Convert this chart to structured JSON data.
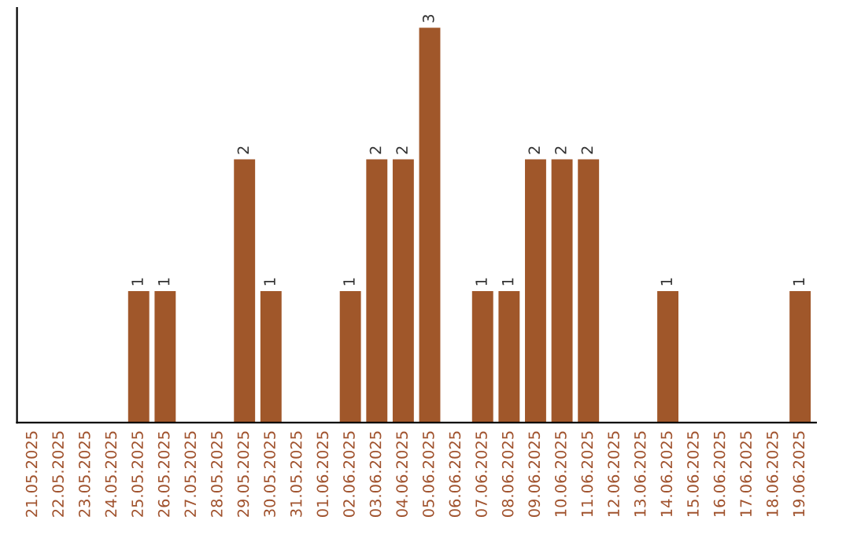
{
  "chart_data": {
    "type": "bar",
    "categories": [
      "21.05.2025",
      "22.05.2025",
      "23.05.2025",
      "24.05.2025",
      "25.05.2025",
      "26.05.2025",
      "27.05.2025",
      "28.05.2025",
      "29.05.2025",
      "30.05.2025",
      "31.05.2025",
      "01.06.2025",
      "02.06.2025",
      "03.06.2025",
      "04.06.2025",
      "05.06.2025",
      "06.06.2025",
      "07.06.2025",
      "08.06.2025",
      "09.06.2025",
      "10.06.2025",
      "11.06.2025",
      "12.06.2025",
      "13.06.2025",
      "14.06.2025",
      "15.06.2025",
      "16.06.2025",
      "17.06.2025",
      "18.06.2025",
      "19.06.2025"
    ],
    "values": [
      0,
      0,
      0,
      0,
      1,
      1,
      0,
      0,
      2,
      1,
      0,
      0,
      1,
      2,
      2,
      3,
      0,
      1,
      1,
      2,
      2,
      2,
      0,
      0,
      1,
      0,
      0,
      0,
      0,
      1
    ],
    "value_labels": [
      null,
      null,
      null,
      null,
      "1",
      "1",
      null,
      null,
      "2",
      "1",
      null,
      null,
      "1",
      "2",
      "2",
      "3",
      null,
      "1",
      "1",
      "2",
      "2",
      "2",
      null,
      null,
      "1",
      null,
      null,
      null,
      null,
      "1"
    ],
    "color": "#a0572a",
    "tick_labels": "x",
    "grid": false,
    "legend": false
  }
}
